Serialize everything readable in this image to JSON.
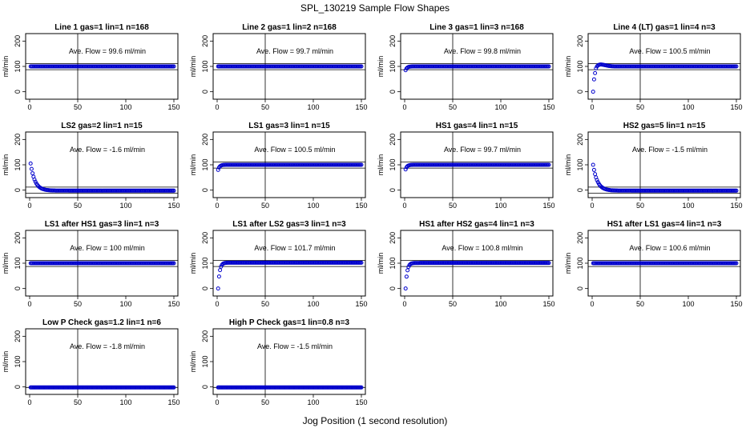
{
  "title": "SPL_130219  Sample Flow Shapes",
  "xlabel": "Jog Position (1 second resolution)",
  "colors": {
    "points": "#0000cc",
    "axes": "#000000"
  },
  "chart_data": [
    {
      "type": "scatter",
      "title": "Line 1 gas=1 lin=1 n=168",
      "ylabel": "ml/min",
      "annotation": "Ave. Flow =  99.6  ml/min",
      "xlim": [
        0,
        150
      ],
      "ylim": [
        -20,
        220
      ],
      "xticks": [
        0,
        50,
        100,
        150
      ],
      "yticks": [
        0,
        100,
        200
      ],
      "hlines": [
        87,
        111
      ],
      "vline": 50,
      "shape": "flat",
      "level": 100,
      "x_range": [
        1,
        150
      ]
    },
    {
      "type": "scatter",
      "title": "Line 2 gas=1 lin=2 n=168",
      "ylabel": "ml/min",
      "annotation": "Ave. Flow =  99.7  ml/min",
      "xlim": [
        0,
        150
      ],
      "ylim": [
        -20,
        220
      ],
      "xticks": [
        0,
        50,
        100,
        150
      ],
      "yticks": [
        0,
        100,
        200
      ],
      "hlines": [
        87,
        111
      ],
      "vline": 50,
      "shape": "flat",
      "level": 100,
      "x_range": [
        1,
        150
      ]
    },
    {
      "type": "scatter",
      "title": "Line 3 gas=1 lin=3 n=168",
      "ylabel": "ml/min",
      "annotation": "Ave. Flow =  99.8  ml/min",
      "xlim": [
        0,
        150
      ],
      "ylim": [
        -20,
        220
      ],
      "xticks": [
        0,
        50,
        100,
        150
      ],
      "yticks": [
        0,
        100,
        200
      ],
      "hlines": [
        87,
        111
      ],
      "vline": 50,
      "shape": "rise",
      "start": 85,
      "level": 100,
      "x_range": [
        1,
        150
      ]
    },
    {
      "type": "scatter",
      "title": "Line 4 (LT) gas=1 lin=4 n=3",
      "ylabel": "ml/min",
      "annotation": "Ave. Flow =  100.5  ml/min",
      "xlim": [
        0,
        150
      ],
      "ylim": [
        -20,
        220
      ],
      "xticks": [
        0,
        50,
        100,
        150
      ],
      "yticks": [
        0,
        100,
        200
      ],
      "hlines": [
        87,
        111
      ],
      "vline": 50,
      "shape": "overshoot",
      "start": 0,
      "level": 100,
      "x_range": [
        1,
        150
      ]
    },
    {
      "type": "scatter",
      "title": "LS2 gas=2 lin=1 n=15",
      "ylabel": "ml/min",
      "annotation": "Ave. Flow =  -1.6  ml/min",
      "xlim": [
        0,
        150
      ],
      "ylim": [
        -20,
        220
      ],
      "xticks": [
        0,
        50,
        100,
        150
      ],
      "yticks": [
        0,
        100,
        200
      ],
      "hlines": [
        -12,
        12
      ],
      "vline": 50,
      "shape": "decay",
      "start": 105,
      "level": -2,
      "x_range": [
        1,
        150
      ]
    },
    {
      "type": "scatter",
      "title": "LS1 gas=3 lin=1 n=15",
      "ylabel": "ml/min",
      "annotation": "Ave. Flow =  100.5  ml/min",
      "xlim": [
        0,
        150
      ],
      "ylim": [
        -20,
        220
      ],
      "xticks": [
        0,
        50,
        100,
        150
      ],
      "yticks": [
        0,
        100,
        200
      ],
      "hlines": [
        87,
        111
      ],
      "vline": 50,
      "shape": "rise",
      "start": 80,
      "level": 100,
      "x_range": [
        1,
        150
      ]
    },
    {
      "type": "scatter",
      "title": "HS1 gas=4 lin=1 n=15",
      "ylabel": "ml/min",
      "annotation": "Ave. Flow =  99.7  ml/min",
      "xlim": [
        0,
        150
      ],
      "ylim": [
        -20,
        220
      ],
      "xticks": [
        0,
        50,
        100,
        150
      ],
      "yticks": [
        0,
        100,
        200
      ],
      "hlines": [
        87,
        111
      ],
      "vline": 50,
      "shape": "rise",
      "start": 82,
      "level": 100,
      "x_range": [
        1,
        150
      ]
    },
    {
      "type": "scatter",
      "title": "HS2 gas=5 lin=1 n=15",
      "ylabel": "ml/min",
      "annotation": "Ave. Flow =  -1.5  ml/min",
      "xlim": [
        0,
        150
      ],
      "ylim": [
        -20,
        220
      ],
      "xticks": [
        0,
        50,
        100,
        150
      ],
      "yticks": [
        0,
        100,
        200
      ],
      "hlines": [
        -12,
        12
      ],
      "vline": 50,
      "shape": "decay",
      "start": 100,
      "level": -2,
      "x_range": [
        1,
        150
      ]
    },
    {
      "type": "scatter",
      "title": "LS1 after HS1 gas=3 lin=1 n=3",
      "ylabel": "ml/min",
      "annotation": "Ave. Flow =  100  ml/min",
      "xlim": [
        0,
        150
      ],
      "ylim": [
        -20,
        220
      ],
      "xticks": [
        0,
        50,
        100,
        150
      ],
      "yticks": [
        0,
        100,
        200
      ],
      "hlines": [
        87,
        111
      ],
      "vline": 50,
      "shape": "flat",
      "level": 100,
      "x_range": [
        1,
        150
      ]
    },
    {
      "type": "scatter",
      "title": "LS1 after LS2 gas=3 lin=1 n=3",
      "ylabel": "ml/min",
      "annotation": "Ave. Flow =  101.7  ml/min",
      "xlim": [
        0,
        150
      ],
      "ylim": [
        -20,
        220
      ],
      "xticks": [
        0,
        50,
        100,
        150
      ],
      "yticks": [
        0,
        100,
        200
      ],
      "hlines": [
        87,
        111
      ],
      "vline": 50,
      "shape": "rise",
      "start": 0,
      "level": 102,
      "x_range": [
        1,
        150
      ]
    },
    {
      "type": "scatter",
      "title": "HS1 after HS2 gas=4 lin=1 n=3",
      "ylabel": "ml/min",
      "annotation": "Ave. Flow =  100.8  ml/min",
      "xlim": [
        0,
        150
      ],
      "ylim": [
        -20,
        220
      ],
      "xticks": [
        0,
        50,
        100,
        150
      ],
      "yticks": [
        0,
        100,
        200
      ],
      "hlines": [
        87,
        111
      ],
      "vline": 50,
      "shape": "rise",
      "start": 0,
      "level": 101,
      "x_range": [
        1,
        150
      ]
    },
    {
      "type": "scatter",
      "title": "HS1 after LS1 gas=4 lin=1 n=3",
      "ylabel": "ml/min",
      "annotation": "Ave. Flow =  100.6  ml/min",
      "xlim": [
        0,
        150
      ],
      "ylim": [
        -20,
        220
      ],
      "xticks": [
        0,
        50,
        100,
        150
      ],
      "yticks": [
        0,
        100,
        200
      ],
      "hlines": [
        87,
        111
      ],
      "vline": 50,
      "shape": "flat",
      "level": 100,
      "x_range": [
        1,
        150
      ]
    },
    {
      "type": "scatter",
      "title": "Low P Check gas=1.2 lin=1 n=6",
      "ylabel": "ml/min",
      "annotation": "Ave. Flow =  -1.8  ml/min",
      "xlim": [
        0,
        150
      ],
      "ylim": [
        -20,
        220
      ],
      "xticks": [
        0,
        50,
        100,
        150
      ],
      "yticks": [
        0,
        100,
        200
      ],
      "hlines": [
        -2
      ],
      "vline": 50,
      "shape": "flat",
      "level": -2,
      "x_range": [
        1,
        150
      ]
    },
    {
      "type": "scatter",
      "title": "High P Check gas=1 lin=0.8 n=3",
      "ylabel": "ml/min",
      "annotation": "Ave. Flow =  -1.5  ml/min",
      "xlim": [
        0,
        150
      ],
      "ylim": [
        -20,
        220
      ],
      "xticks": [
        0,
        50,
        100,
        150
      ],
      "yticks": [
        0,
        100,
        200
      ],
      "hlines": [
        -2
      ],
      "vline": 50,
      "shape": "flat",
      "level": -2,
      "x_range": [
        1,
        150
      ]
    }
  ]
}
